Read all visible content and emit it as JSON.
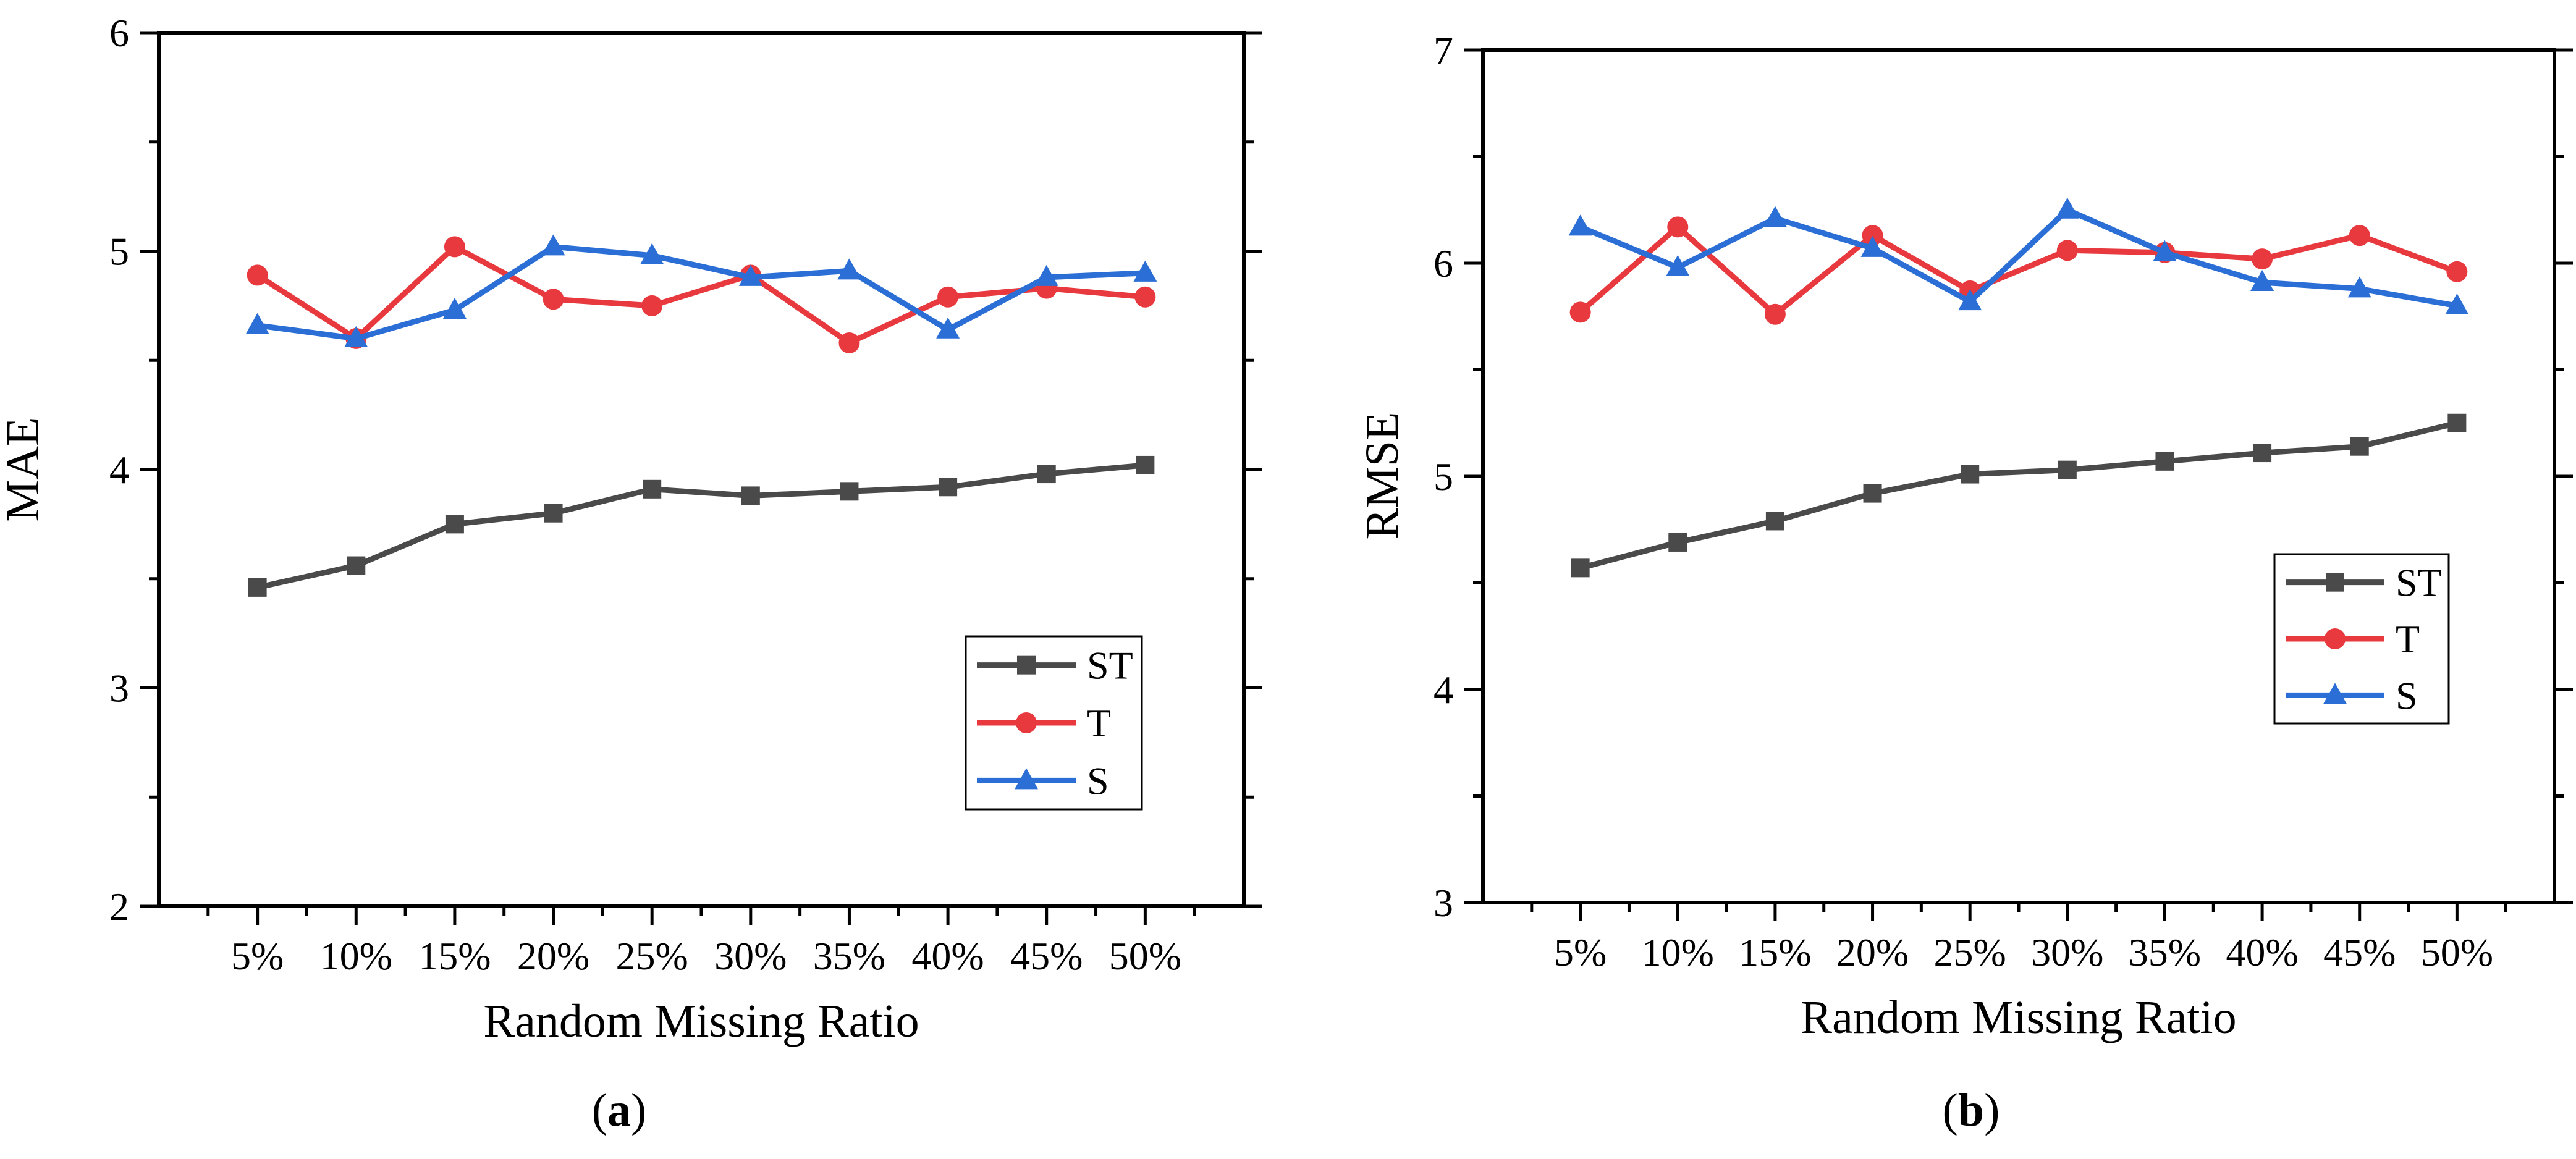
{
  "chart_data": [
    {
      "type": "line",
      "title": "",
      "panel_label": "a",
      "xlabel": "Random Missing Ratio",
      "ylabel": "MAE",
      "categories": [
        "5%",
        "10%",
        "15%",
        "20%",
        "25%",
        "30%",
        "35%",
        "40%",
        "45%",
        "50%"
      ],
      "ylim": [
        2,
        6
      ],
      "yticks": [
        2,
        3,
        4,
        5,
        6
      ],
      "grid": false,
      "legend_position": "bottom-right",
      "series": [
        {
          "name": "ST",
          "color": "#4a4a4a",
          "marker": "square",
          "values": [
            3.46,
            3.56,
            3.75,
            3.8,
            3.91,
            3.88,
            3.9,
            3.92,
            3.98,
            4.02
          ]
        },
        {
          "name": "T",
          "color": "#e8393f",
          "marker": "circle",
          "values": [
            4.89,
            4.6,
            5.02,
            4.78,
            4.75,
            4.89,
            4.58,
            4.79,
            4.83,
            4.79
          ]
        },
        {
          "name": "S",
          "color": "#2b6fd6",
          "marker": "triangle",
          "values": [
            4.66,
            4.6,
            4.73,
            5.02,
            4.98,
            4.88,
            4.91,
            4.64,
            4.88,
            4.9
          ]
        }
      ]
    },
    {
      "type": "line",
      "title": "",
      "panel_label": "b",
      "xlabel": "Random Missing Ratio",
      "ylabel": "RMSE",
      "categories": [
        "5%",
        "10%",
        "15%",
        "20%",
        "25%",
        "30%",
        "35%",
        "40%",
        "45%",
        "50%"
      ],
      "ylim": [
        3,
        7
      ],
      "yticks": [
        3,
        4,
        5,
        6,
        7
      ],
      "grid": false,
      "legend_position": "right",
      "series": [
        {
          "name": "ST",
          "color": "#4a4a4a",
          "marker": "square",
          "values": [
            4.57,
            4.69,
            4.79,
            4.92,
            5.01,
            5.03,
            5.07,
            5.11,
            5.14,
            5.25
          ]
        },
        {
          "name": "T",
          "color": "#e8393f",
          "marker": "circle",
          "values": [
            5.77,
            6.17,
            5.76,
            6.13,
            5.87,
            6.06,
            6.05,
            6.02,
            6.13,
            5.96
          ]
        },
        {
          "name": "S",
          "color": "#2b6fd6",
          "marker": "triangle",
          "values": [
            6.17,
            5.98,
            6.21,
            6.07,
            5.82,
            6.25,
            6.05,
            5.91,
            5.88,
            5.8
          ]
        }
      ]
    }
  ]
}
